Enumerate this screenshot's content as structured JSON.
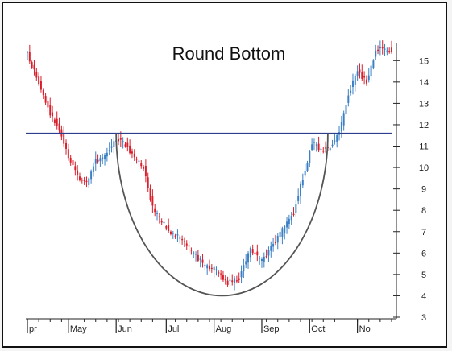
{
  "chart_data": {
    "type": "candlestick",
    "title": "Round Bottom",
    "colors": {
      "up": "#3b7fc4",
      "down": "#d81e2a",
      "resistance": "#2e3e8f",
      "arc": "#555555",
      "axis": "#222222"
    },
    "y_axis": {
      "side": "right",
      "ylim": [
        3,
        15.5
      ],
      "ticks": [
        3,
        4,
        5,
        6,
        7,
        8,
        9,
        10,
        11,
        12,
        13,
        14,
        15
      ]
    },
    "x_axis": {
      "labels": [
        "pr",
        "May",
        "Jun",
        "Jul",
        "Aug",
        "Sep",
        "Oct",
        "No"
      ],
      "index_range": [
        0,
        160
      ],
      "label_index": [
        0,
        18,
        39,
        61,
        82,
        103,
        124,
        145
      ]
    },
    "resistance_line": {
      "y": 11.6
    },
    "round_bottom_arc": {
      "start": [
        39,
        11.6
      ],
      "bottom": [
        86,
        4.0
      ],
      "end": [
        132,
        11.6
      ]
    },
    "price_path": [
      [
        0,
        15.3
      ],
      [
        5,
        14.0
      ],
      [
        10,
        12.5
      ],
      [
        14,
        11.8
      ],
      [
        18,
        10.5
      ],
      [
        22,
        9.6
      ],
      [
        26,
        9.3
      ],
      [
        30,
        10.3
      ],
      [
        34,
        10.5
      ],
      [
        39,
        11.3
      ],
      [
        43,
        11.1
      ],
      [
        47,
        10.5
      ],
      [
        51,
        10.0
      ],
      [
        55,
        8.1
      ],
      [
        58,
        7.6
      ],
      [
        63,
        7.0
      ],
      [
        68,
        6.6
      ],
      [
        73,
        6.0
      ],
      [
        78,
        5.4
      ],
      [
        83,
        5.2
      ],
      [
        88,
        4.6
      ],
      [
        93,
        4.8
      ],
      [
        98,
        6.2
      ],
      [
        103,
        5.6
      ],
      [
        108,
        6.4
      ],
      [
        113,
        7.2
      ],
      [
        117,
        7.9
      ],
      [
        121,
        9.5
      ],
      [
        125,
        11.2
      ],
      [
        129,
        10.8
      ],
      [
        133,
        11.0
      ],
      [
        137,
        11.6
      ],
      [
        141,
        13.4
      ],
      [
        145,
        14.5
      ],
      [
        149,
        14.0
      ],
      [
        153,
        15.5
      ]
    ]
  }
}
